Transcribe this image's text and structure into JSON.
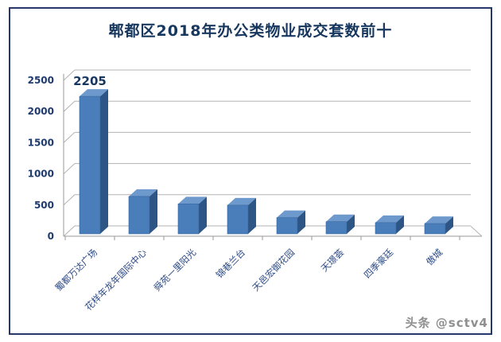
{
  "title": "郫都区2018年办公类物业成交套数前十",
  "watermark": "头条 @sctv4",
  "colors": {
    "bar_front": "#4a7ebb",
    "bar_top": "#6d99cd",
    "bar_side": "#2d5585",
    "bar_outline": "#38659c",
    "grid": "#b3b3b3",
    "axis": "#9a9a9a",
    "title_navy": "#17375e",
    "label_navy": "#2c4a86",
    "border_navy": "#26386b",
    "watermark_gray": "#8f8f8f"
  },
  "chart_data": {
    "type": "bar",
    "style": "3d-column",
    "title": "郫都区2018年办公类物业成交套数前十",
    "categories": [
      "蜀都万达广场",
      "花样年龙年国际中心",
      "舜苑一里阳光",
      "锦巷兰台",
      "天邑宏御花园",
      "天璟荟",
      "四季豪廷",
      "傲城"
    ],
    "values": [
      2205,
      600,
      480,
      460,
      260,
      195,
      180,
      165
    ],
    "shown_data_labels": [
      "2205",
      "",
      "",
      "",
      "",
      "",
      "",
      ""
    ],
    "xlabel": "",
    "ylabel": "",
    "ylim": [
      0,
      2500
    ],
    "yticks": [
      0,
      500,
      1000,
      1500,
      2000,
      2500
    ],
    "grid": true,
    "legend": false,
    "x_label_rotation_deg": -45
  }
}
